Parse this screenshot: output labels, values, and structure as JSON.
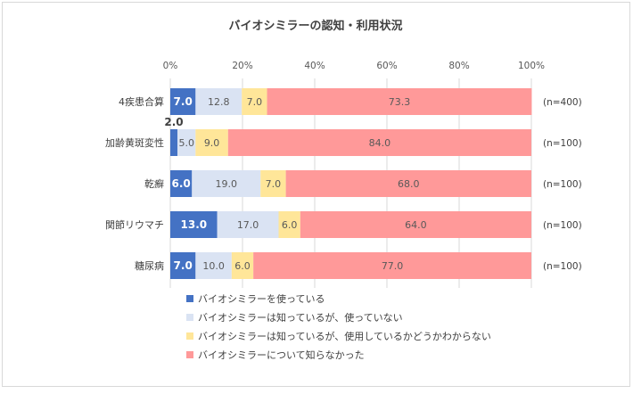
{
  "chart_data": {
    "type": "bar",
    "orientation": "horizontal",
    "stacked": true,
    "percent_stacked": true,
    "title": "バイオシミラーの認知・利用状況",
    "categories": [
      "4疾患合算",
      "加齢黄斑変性",
      "乾癬",
      "関節リウマチ",
      "糖尿病"
    ],
    "sample_sizes": [
      "(n=400)",
      "(n=100)",
      "(n=100)",
      "(n=100)",
      "(n=100)"
    ],
    "xlim": [
      0,
      100
    ],
    "x_ticks": [
      "0%",
      "20%",
      "40%",
      "60%",
      "80%",
      "100%"
    ],
    "grid": true,
    "legend_position": "bottom",
    "series": [
      {
        "name": "バイオシミラーを使っている",
        "color": "#4472c4",
        "values": [
          7.0,
          2.0,
          6.0,
          13.0,
          7.0
        ],
        "labels": [
          "7.0",
          "2.0",
          "6.0",
          "13.0",
          "7.0"
        ]
      },
      {
        "name": "バイオシミラーは知っているが、使っていない",
        "color": "#dae3f3",
        "values": [
          12.8,
          5.0,
          19.0,
          17.0,
          10.0
        ],
        "labels": [
          "12.8",
          "5.0",
          "19.0",
          "17.0",
          "10.0"
        ]
      },
      {
        "name": "バイオシミラーは知っているが、使用しているかどうかわからない",
        "color": "#ffe699",
        "values": [
          7.0,
          9.0,
          7.0,
          6.0,
          6.0
        ],
        "labels": [
          "7.0",
          "9.0",
          "7.0",
          "6.0",
          "6.0"
        ]
      },
      {
        "name": "バイオシミラーについて知らなかった",
        "color": "#ff9999",
        "values": [
          73.3,
          84.0,
          68.0,
          64.0,
          77.0
        ],
        "labels": [
          "73.3",
          "84.0",
          "68.0",
          "64.0",
          "77.0"
        ]
      }
    ]
  }
}
